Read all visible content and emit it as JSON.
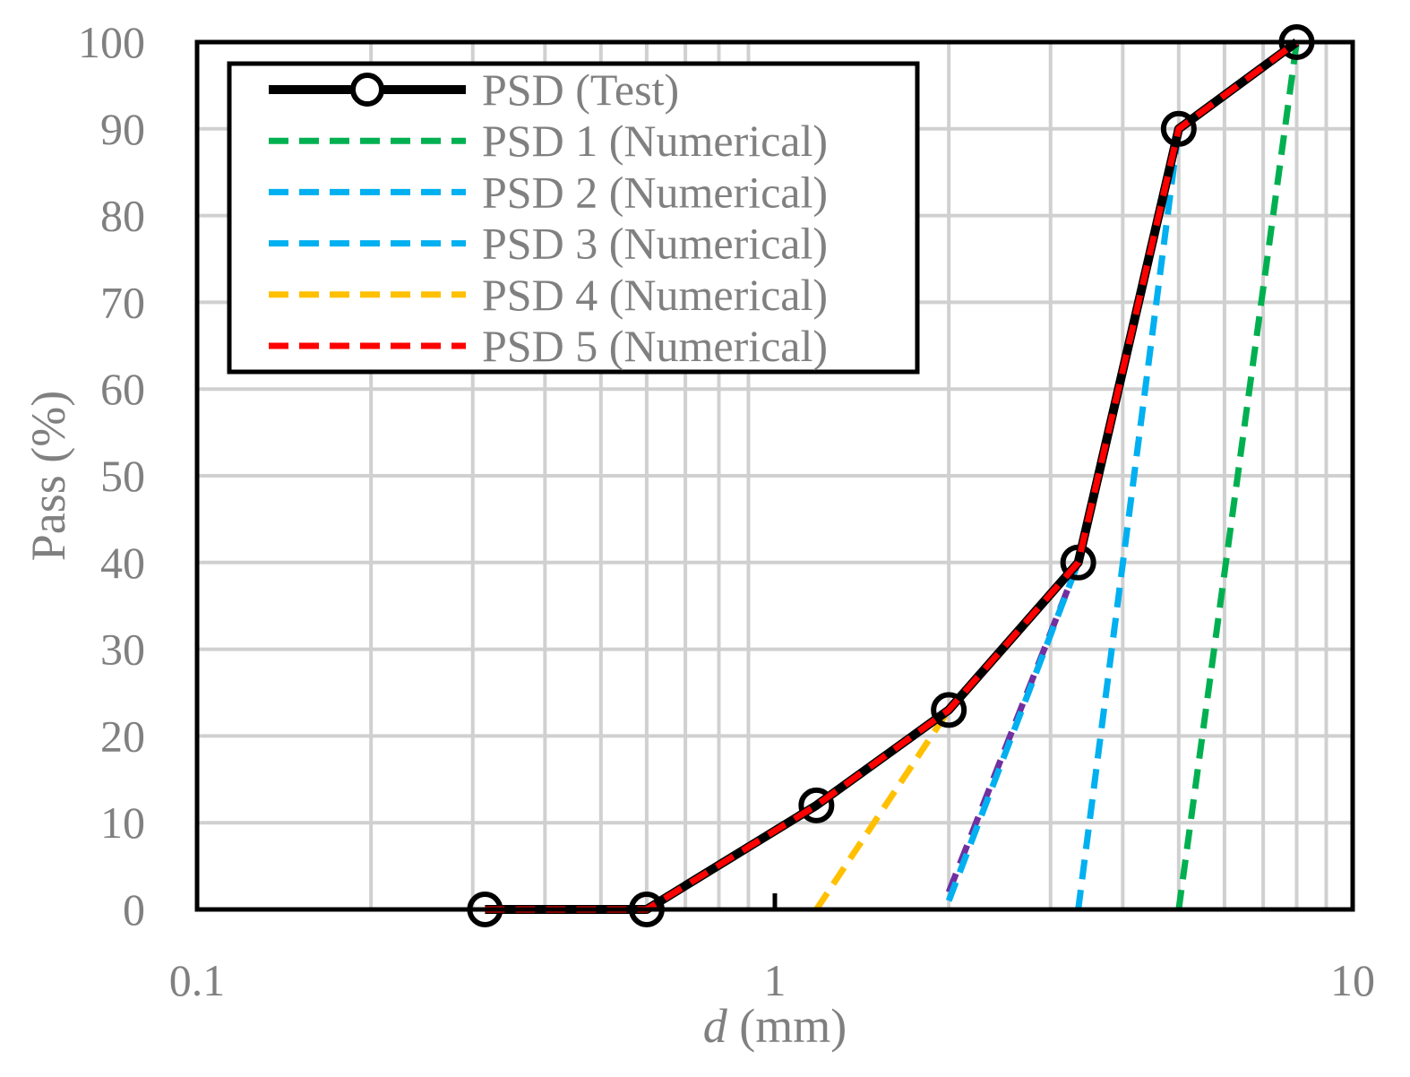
{
  "chart_data": {
    "type": "line",
    "xscale": "log",
    "xlabel_italic": "d",
    "xlabel_rest": " (mm)",
    "ylabel": "Pass (%)",
    "xlim": [
      0.1,
      10
    ],
    "ylim": [
      0,
      100
    ],
    "grid": true,
    "legend_position": "top-left",
    "x_ticks": [
      {
        "value": 0.1,
        "label": "0.1"
      },
      {
        "value": 1,
        "label": "1"
      },
      {
        "value": 10,
        "label": "10"
      }
    ],
    "y_ticks": [
      {
        "value": 0,
        "label": "0"
      },
      {
        "value": 10,
        "label": "10"
      },
      {
        "value": 20,
        "label": "20"
      },
      {
        "value": 30,
        "label": "30"
      },
      {
        "value": 40,
        "label": "40"
      },
      {
        "value": 50,
        "label": "50"
      },
      {
        "value": 60,
        "label": "60"
      },
      {
        "value": 70,
        "label": "70"
      },
      {
        "value": 80,
        "label": "80"
      },
      {
        "value": 90,
        "label": "90"
      },
      {
        "value": 100,
        "label": "100"
      }
    ],
    "series": [
      {
        "name": "PSD (Test)",
        "legend": true,
        "color": "#000000",
        "style": "solid-marker",
        "x": [
          0.315,
          0.6,
          1.18,
          2.0,
          3.35,
          5.0,
          8.0
        ],
        "y": [
          0,
          0,
          12,
          23,
          40,
          90,
          100
        ]
      },
      {
        "name": "PSD 1 (Numerical)",
        "legend": true,
        "color": "#00b050",
        "style": "dashed",
        "x": [
          5.0,
          8.0
        ],
        "y": [
          0,
          100
        ]
      },
      {
        "name": "PSD 2 (Numerical)",
        "legend": true,
        "color": "#00b0f0",
        "style": "dashed",
        "x": [
          3.35,
          5.0
        ],
        "y": [
          0,
          90
        ]
      },
      {
        "name": "PSD 3 (Numerical)",
        "legend": true,
        "color": "#00b0f0",
        "style": "dashed",
        "x": [
          2.0,
          3.35
        ],
        "y": [
          1,
          40
        ]
      },
      {
        "name": "PSD 4 (Numerical)",
        "legend": true,
        "color": "#ffc000",
        "style": "dashed",
        "x": [
          1.18,
          2.0
        ],
        "y": [
          0,
          23
        ]
      },
      {
        "name": "PSD 5 (Numerical)",
        "legend": true,
        "color": "#ff0000",
        "style": "dashed",
        "x": [
          0.315,
          0.6,
          1.18,
          2.0,
          3.35,
          5.0,
          8.0
        ],
        "y": [
          0,
          0,
          12,
          23,
          40,
          90,
          100
        ]
      },
      {
        "name": "PSD 3 (purple)",
        "legend": false,
        "color": "#7030a0",
        "style": "dashed",
        "x": [
          2.0,
          3.35
        ],
        "y": [
          2,
          40
        ]
      }
    ]
  }
}
